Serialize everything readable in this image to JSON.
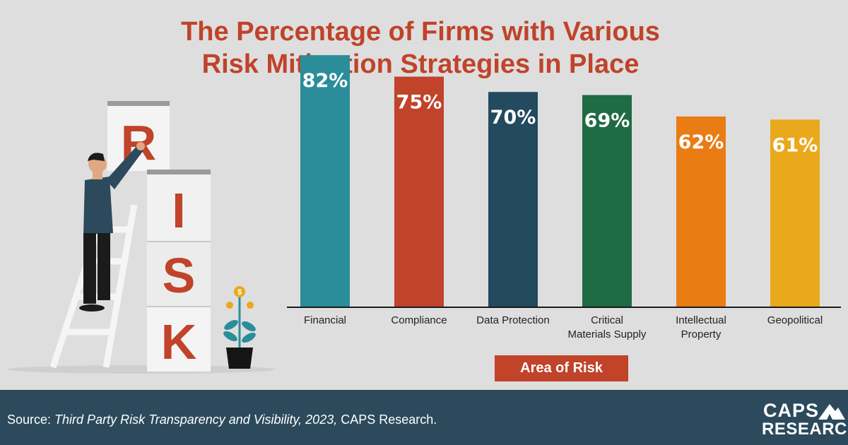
{
  "chart_data": {
    "type": "bar",
    "title": "The Percentage of Firms with Various\nRisk Mitigation Strategies in Place",
    "title_lines": [
      "The Percentage of Firms with Various",
      "Risk Mitigation Strategies in Place"
    ],
    "xlabel": "Area of Risk",
    "ylabel": "",
    "ylim": [
      0,
      100
    ],
    "grid": false,
    "categories": [
      [
        "Financial"
      ],
      [
        "Compliance"
      ],
      [
        "Data Protection"
      ],
      [
        "Critical",
        "Materials Supply"
      ],
      [
        "Intellectual",
        "Property"
      ],
      [
        "Geopolitical"
      ]
    ],
    "values": [
      82,
      75,
      70,
      69,
      62,
      61
    ],
    "value_labels": [
      "82%",
      "75%",
      "70%",
      "69%",
      "62%",
      "61%"
    ],
    "colors": [
      "#2a8d99",
      "#c0432a",
      "#234a5e",
      "#1f6b44",
      "#ea7c14",
      "#eaa81d"
    ]
  },
  "illustration": {
    "letters": [
      "R",
      "I",
      "S",
      "K"
    ],
    "coin_symbol": "$"
  },
  "footer": {
    "source_prefix": "Source: ",
    "source_title": "Third Party Risk Transparency and Visibility, 2023,",
    "source_suffix": " CAPS Research.",
    "logo_top": "CAPS",
    "logo_bottom": "RESEARCH"
  }
}
